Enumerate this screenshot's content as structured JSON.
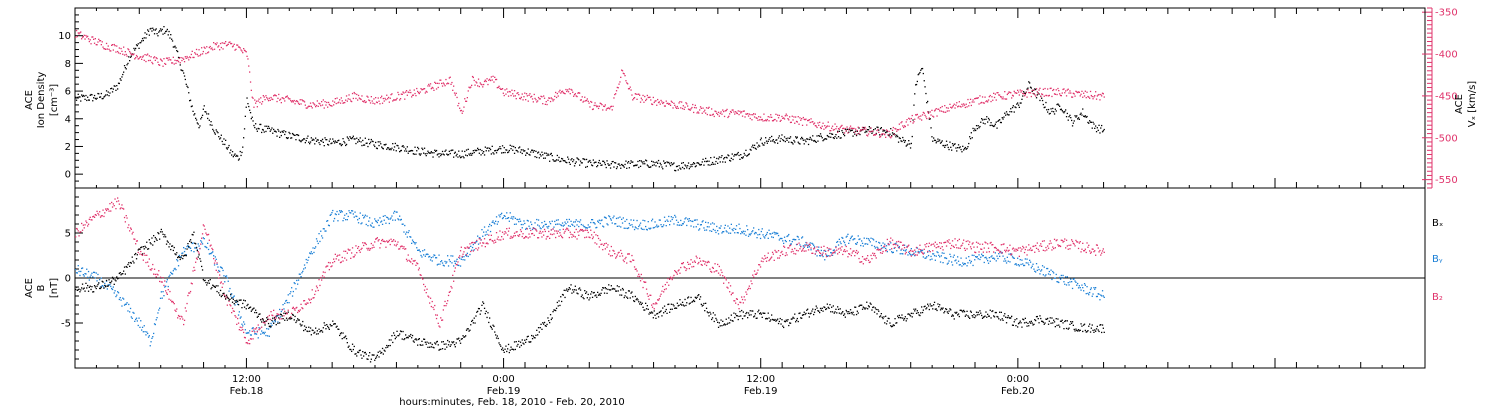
{
  "colors": {
    "density": "#000000",
    "vx": "#e0336b",
    "bx": "#000000",
    "by": "#1a7fd6",
    "bz": "#e0336b",
    "frame": "#000000"
  },
  "footer": {
    "xlabel": "hours:minutes, Feb. 18, 2010 - Feb. 20, 2010"
  },
  "chart_data": [
    {
      "type": "scatter",
      "name": "density-panel",
      "ylabel": [
        "ACE",
        "Ion Density",
        "[cm⁻³]"
      ],
      "ylim": [
        -1,
        12
      ],
      "yticks": [
        0,
        2,
        4,
        6,
        8,
        10
      ],
      "xlim_hours": [
        0,
        63
      ],
      "xtick_labels": [
        {
          "time": "12:00",
          "date": "Feb.18",
          "hour": 8
        },
        {
          "time": "0:00",
          "date": "Feb.19",
          "hour": 20
        },
        {
          "time": "12:00",
          "date": "Feb.19",
          "hour": 32
        },
        {
          "time": "0:00",
          "date": "Feb.20",
          "hour": 44
        }
      ],
      "series": [
        {
          "key": "density",
          "x_hours": [
            0,
            1,
            1.5,
            2,
            2.5,
            3,
            3.5,
            3.8,
            4.2,
            4.5,
            5,
            5.5,
            5.8,
            6,
            6.5,
            7,
            7.3,
            7.6,
            7.8,
            8,
            8.3,
            9,
            10,
            11,
            12,
            13,
            14,
            15,
            16,
            17,
            18,
            19,
            20,
            21,
            22,
            23,
            24,
            25,
            26,
            27,
            28,
            29,
            30,
            31,
            31.5,
            32,
            33,
            34,
            35,
            36,
            37,
            38,
            38.5,
            39,
            39.2,
            39.5,
            40,
            41,
            41.5,
            42,
            42.5,
            43,
            43.5,
            44,
            44.5,
            45,
            45.5,
            46,
            46.5,
            47,
            47.5,
            48
          ],
          "values": [
            5.5,
            5.6,
            5.8,
            6.5,
            8.5,
            9.5,
            10.5,
            10.2,
            10.5,
            9.8,
            7.5,
            4.5,
            3.5,
            4.8,
            3.2,
            2.2,
            1.5,
            1.2,
            2.0,
            5.5,
            3.5,
            3.2,
            2.8,
            2.5,
            2.3,
            2.5,
            2.2,
            2.0,
            1.7,
            1.5,
            1.5,
            1.7,
            1.9,
            1.7,
            1.3,
            1.0,
            0.8,
            0.7,
            0.75,
            0.8,
            0.6,
            0.8,
            1.1,
            1.4,
            1.8,
            2.4,
            2.6,
            2.4,
            2.8,
            3.0,
            3.2,
            3.1,
            2.5,
            2.2,
            6.5,
            7.8,
            2.5,
            2.0,
            1.8,
            3.5,
            4.0,
            3.5,
            4.5,
            5.0,
            6.5,
            5.5,
            4.5,
            5.0,
            3.8,
            4.5,
            3.5,
            3.2
          ]
        },
        {
          "key": "vx",
          "ylabel": [
            "ACE",
            "Vₓ [km/s]"
          ],
          "ylim": [
            -560,
            -345
          ],
          "yticks": [
            -350,
            -400,
            -450,
            -500,
            -550
          ],
          "x_hours": [
            0,
            0.5,
            1,
            1.5,
            2,
            2.5,
            3,
            3.5,
            4,
            4.5,
            5,
            5.5,
            6,
            6.5,
            7,
            7.5,
            8,
            8.3,
            9,
            10,
            11,
            12,
            13,
            14,
            15,
            16,
            17,
            17.5,
            18,
            18.5,
            19,
            19.5,
            20,
            21,
            22,
            23,
            24,
            25,
            25.5,
            26,
            27,
            28,
            29,
            30,
            31,
            32,
            33,
            34,
            35,
            36,
            37,
            38,
            38.5,
            39,
            40,
            41,
            42,
            43,
            44,
            45,
            46,
            47,
            48
          ],
          "values": [
            -375,
            -380,
            -385,
            -390,
            -393,
            -398,
            -402,
            -405,
            -410,
            -408,
            -405,
            -400,
            -395,
            -390,
            -388,
            -390,
            -400,
            -460,
            -450,
            -455,
            -460,
            -458,
            -450,
            -455,
            -450,
            -445,
            -435,
            -430,
            -470,
            -430,
            -435,
            -430,
            -445,
            -450,
            -455,
            -440,
            -460,
            -465,
            -420,
            -450,
            -455,
            -460,
            -465,
            -470,
            -470,
            -475,
            -475,
            -480,
            -485,
            -490,
            -492,
            -495,
            -485,
            -478,
            -470,
            -462,
            -455,
            -450,
            -447,
            -445,
            -445,
            -448,
            -450
          ]
        }
      ]
    },
    {
      "type": "scatter",
      "name": "magnetic-panel",
      "ylabel": [
        "ACE",
        "B",
        "[nT]"
      ],
      "ylim": [
        -10,
        10
      ],
      "yticks": [
        5,
        0,
        -5
      ],
      "xlim_hours": [
        0,
        63
      ],
      "legend": [
        "Bₓ",
        "Bᵧ",
        "B₂"
      ],
      "series": [
        {
          "key": "bx",
          "name": "Bₓ",
          "x_hours": [
            0,
            1,
            2,
            3,
            4,
            5,
            5.5,
            6,
            7,
            8,
            9,
            10,
            11,
            12,
            13,
            14,
            15,
            16,
            17,
            18,
            19,
            20,
            21,
            22,
            23,
            24,
            25,
            26,
            27,
            28,
            29,
            30,
            31,
            32,
            33,
            34,
            35,
            36,
            37,
            38,
            39,
            40,
            41,
            42,
            43,
            44,
            45,
            46,
            47,
            48
          ],
          "values": [
            -1,
            -1,
            0,
            3,
            5,
            2,
            5,
            0,
            -2,
            -3,
            -5,
            -4,
            -6,
            -5,
            -8,
            -9,
            -6,
            -7,
            -7.5,
            -7,
            -3,
            -8,
            -7,
            -5,
            -1,
            -2,
            -1,
            -2,
            -4,
            -3,
            -2,
            -5,
            -4,
            -4,
            -5,
            -4,
            -3,
            -4,
            -3,
            -5,
            -4,
            -3,
            -4,
            -4,
            -4,
            -5,
            -4.5,
            -5,
            -5.5,
            -5.5
          ]
        },
        {
          "key": "by",
          "name": "Bᵧ",
          "x_hours": [
            0,
            1,
            2,
            3,
            3.5,
            4,
            5,
            6,
            7,
            7.5,
            8,
            9,
            10,
            11,
            12,
            13,
            14,
            15,
            16,
            17,
            18,
            19,
            20,
            21,
            22,
            23,
            24,
            25,
            26,
            27,
            28,
            29,
            30,
            31,
            32,
            33,
            34,
            35,
            36,
            37,
            38,
            39,
            40,
            41,
            42,
            43,
            44,
            45,
            46,
            47,
            48
          ],
          "values": [
            1,
            0,
            -2,
            -5,
            -7,
            -2,
            3,
            4,
            0,
            -3,
            -6,
            -6,
            -2,
            3,
            7,
            7,
            6,
            7,
            3,
            2,
            2,
            5,
            7,
            6,
            6,
            6,
            6,
            6.5,
            6,
            6,
            6.5,
            6,
            5.5,
            5.5,
            5,
            4.5,
            4,
            2.5,
            4.5,
            4,
            3.5,
            3,
            2.5,
            2,
            2,
            2.5,
            2,
            1,
            0,
            -1,
            -2
          ]
        },
        {
          "key": "bz",
          "name": "B₂",
          "x_hours": [
            0,
            1,
            2,
            3,
            4,
            5,
            6,
            7,
            8,
            9,
            10,
            11,
            12,
            13,
            14,
            15,
            16,
            17,
            18,
            19,
            20,
            21,
            22,
            23,
            24,
            25,
            26,
            27,
            28,
            29,
            30,
            31,
            32,
            33,
            34,
            35,
            36,
            37,
            38,
            39,
            40,
            41,
            42,
            43,
            44,
            45,
            46,
            47,
            48
          ],
          "values": [
            5,
            7,
            8.5,
            3,
            0,
            -5,
            6,
            -2,
            -7,
            -4,
            -4,
            -2,
            2,
            3,
            4,
            4,
            1,
            -5,
            3,
            4,
            5,
            5,
            5,
            5,
            5,
            3,
            2,
            -3,
            1,
            2,
            1,
            -3,
            2,
            3,
            3.5,
            3,
            3,
            2,
            4,
            3,
            3.5,
            4,
            3.5,
            3.5,
            3,
            3.5,
            4,
            3.5,
            3
          ]
        }
      ]
    }
  ]
}
